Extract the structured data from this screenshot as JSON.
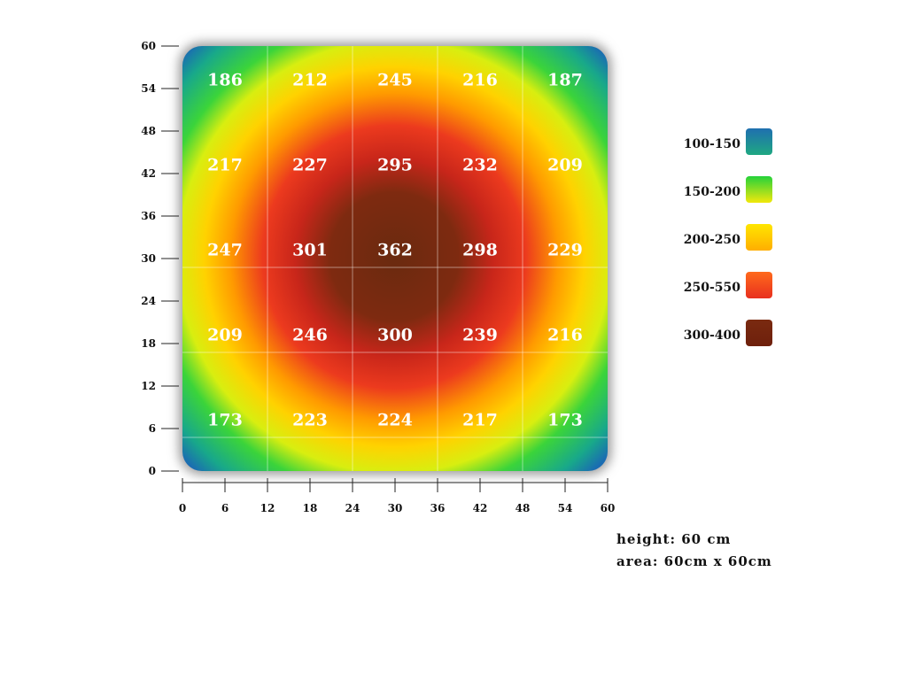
{
  "chart_data": {
    "type": "heatmap",
    "title": "",
    "xlabel": "",
    "ylabel": "",
    "xlim": [
      0,
      60
    ],
    "ylim": [
      0,
      60
    ],
    "x_ticks": [
      0,
      6,
      12,
      18,
      24,
      30,
      36,
      42,
      48,
      54,
      60
    ],
    "y_ticks": [
      0,
      6,
      12,
      18,
      24,
      30,
      36,
      42,
      48,
      54,
      60
    ],
    "grid": true,
    "grid_cells": 5,
    "values": [
      [
        186,
        212,
        245,
        216,
        187
      ],
      [
        217,
        227,
        295,
        232,
        209
      ],
      [
        247,
        301,
        362,
        298,
        229
      ],
      [
        209,
        246,
        300,
        239,
        216
      ],
      [
        173,
        223,
        224,
        217,
        173
      ]
    ],
    "legend_position": "right",
    "legend": [
      {
        "label": "100-150",
        "color_top": "#1f6fb0",
        "color_bottom": "#1fa882"
      },
      {
        "label": "150-200",
        "color_top": "#25d23a",
        "color_bottom": "#f2e80c"
      },
      {
        "label": "200-250",
        "color_top": "#ffe600",
        "color_bottom": "#ffae00"
      },
      {
        "label": "250-550",
        "color_top": "#ff6a1c",
        "color_bottom": "#e8301e"
      },
      {
        "label": "300-400",
        "color_top": "#7a2a10",
        "color_bottom": "#6e200c"
      }
    ],
    "annotations": [
      "height: 60 cm",
      "area: 60cm x 60cm"
    ]
  }
}
